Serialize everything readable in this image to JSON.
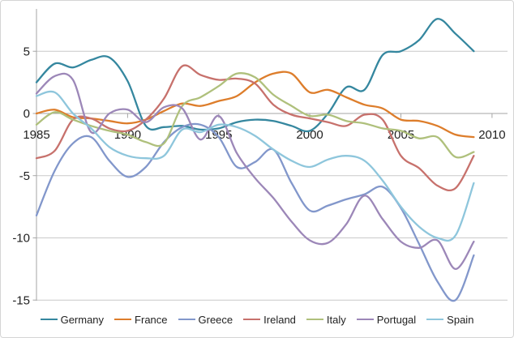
{
  "chart_data": {
    "type": "line",
    "title": "",
    "xlabel": "",
    "ylabel": "",
    "x": [
      1985,
      1986,
      1987,
      1988,
      1989,
      1990,
      1991,
      1992,
      1993,
      1994,
      1995,
      1996,
      1997,
      1998,
      1999,
      2000,
      2001,
      2002,
      2003,
      2004,
      2005,
      2006,
      2007,
      2008,
      2009
    ],
    "xticks": [
      1985,
      1990,
      1995,
      2000,
      2005,
      2010
    ],
    "xtick_labels": [
      "1985",
      "1990",
      "1995",
      "2000",
      "2005",
      "2010"
    ],
    "yticks": [
      5,
      0,
      -5,
      -10,
      -15
    ],
    "ytick_labels": [
      "5",
      "0",
      "-5",
      "-10",
      "-15"
    ],
    "xlim": [
      1985,
      2010.85
    ],
    "ylim": [
      -15.05,
      8.4
    ],
    "grid": true,
    "smoothed_lines": true,
    "legend_position": "bottom",
    "series": [
      {
        "name": "Germany",
        "color": "#35879f",
        "values": [
          2.5,
          4.0,
          3.7,
          4.3,
          4.5,
          2.6,
          -1.0,
          -1.1,
          -1.0,
          -1.3,
          -1.2,
          -0.7,
          -0.5,
          -0.6,
          -1.0,
          -1.4,
          0.0,
          2.1,
          1.9,
          4.7,
          5.0,
          5.9,
          7.6,
          6.4,
          5.0
        ]
      },
      {
        "name": "France",
        "color": "#dd7d2b",
        "values": [
          0.0,
          0.3,
          -0.3,
          -0.4,
          -0.6,
          -0.8,
          -0.5,
          0.2,
          0.8,
          0.6,
          1.0,
          1.4,
          2.5,
          3.2,
          3.2,
          1.7,
          1.9,
          1.3,
          0.7,
          0.4,
          -0.5,
          -0.6,
          -1.0,
          -1.7,
          -1.9
        ]
      },
      {
        "name": "Greece",
        "color": "#8297cb",
        "values": [
          -8.2,
          -4.6,
          -2.4,
          -1.9,
          -3.8,
          -5.1,
          -4.3,
          -2.3,
          -1.1,
          -0.9,
          -1.9,
          -4.3,
          -3.9,
          -2.9,
          -5.6,
          -7.8,
          -7.4,
          -6.9,
          -6.5,
          -5.9,
          -7.6,
          -10.5,
          -13.5,
          -15.0,
          -11.4
        ]
      },
      {
        "name": "Ireland",
        "color": "#c7716c",
        "values": [
          -3.6,
          -3.0,
          -0.5,
          -0.4,
          -1.2,
          -1.4,
          -0.5,
          1.2,
          3.8,
          3.1,
          2.7,
          2.8,
          2.4,
          0.7,
          -0.1,
          -0.4,
          -0.7,
          -1.0,
          -0.1,
          -0.5,
          -3.4,
          -4.4,
          -5.8,
          -6.0,
          -3.4
        ]
      },
      {
        "name": "Italy",
        "color": "#afc07c",
        "values": [
          -0.9,
          0.1,
          -0.5,
          -1.0,
          -1.4,
          -1.7,
          -2.3,
          -2.4,
          0.6,
          1.3,
          2.2,
          3.2,
          2.9,
          1.5,
          0.6,
          -0.2,
          -0.1,
          -0.6,
          -0.8,
          -1.2,
          -1.4,
          -2.0,
          -1.9,
          -3.5,
          -3.1
        ]
      },
      {
        "name": "Portugal",
        "color": "#9c87b8",
        "values": [
          1.6,
          3.0,
          2.7,
          -1.5,
          0.0,
          0.3,
          -0.7,
          0.5,
          0.4,
          -2.1,
          -0.2,
          -3.2,
          -5.2,
          -6.8,
          -8.7,
          -10.2,
          -10.4,
          -8.9,
          -6.6,
          -8.5,
          -10.3,
          -10.8,
          -10.2,
          -12.5,
          -10.3
        ]
      },
      {
        "name": "Spain",
        "color": "#8ec6dc",
        "values": [
          1.4,
          1.7,
          0.0,
          -1.2,
          -2.7,
          -3.4,
          -3.6,
          -3.4,
          -1.3,
          -1.5,
          -0.9,
          -1.1,
          -1.8,
          -2.9,
          -3.8,
          -4.3,
          -3.7,
          -3.4,
          -3.8,
          -5.4,
          -7.5,
          -9.1,
          -10.0,
          -9.8,
          -5.6
        ]
      }
    ],
    "style": {
      "gridline_color": "#c9c9c9",
      "axis_color": "#a6a6a6",
      "text_color": "#1f1f1f",
      "background": "#ffffff",
      "line_width": 2.3
    }
  }
}
